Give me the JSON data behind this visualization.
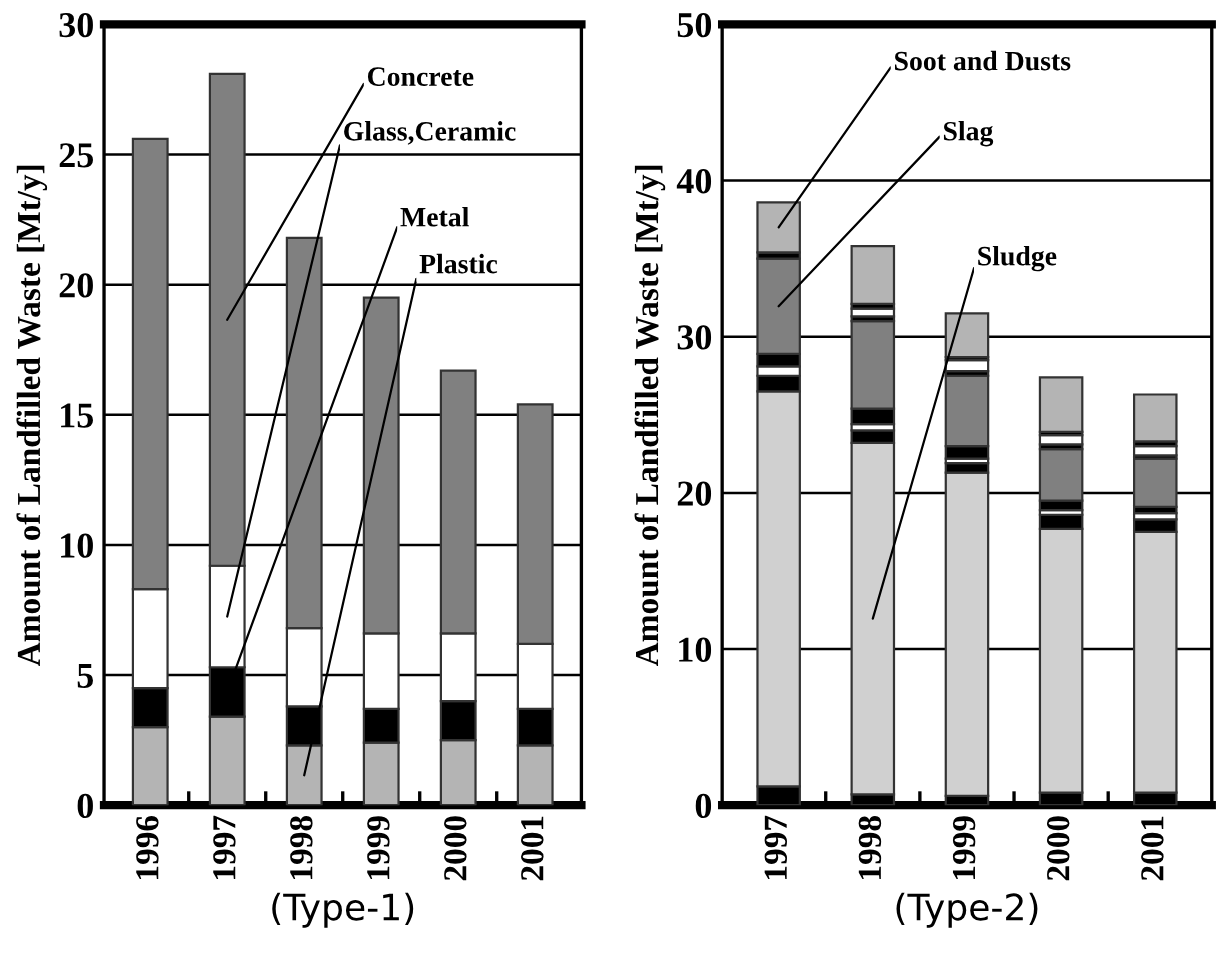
{
  "chart_data": [
    {
      "type": "bar",
      "stacked": true,
      "xlabel": "(Type-1)",
      "ylabel": "Amount of Landfilled Waste [Mt/y]",
      "categories": [
        "1996",
        "1997",
        "1998",
        "1999",
        "2000",
        "2001"
      ],
      "series": [
        {
          "name": "Plastic",
          "color": "#b4b4b4",
          "values": [
            3.0,
            3.4,
            2.3,
            2.4,
            2.5,
            2.3
          ]
        },
        {
          "name": "Metal",
          "color": "#000000",
          "values": [
            1.5,
            1.9,
            1.5,
            1.3,
            1.5,
            1.4
          ]
        },
        {
          "name": "Glass,Ceramic",
          "color": "#ffffff",
          "values": [
            3.8,
            3.9,
            3.0,
            2.9,
            2.6,
            2.5
          ]
        },
        {
          "name": "Concrete",
          "color": "#808080",
          "values": [
            17.3,
            18.9,
            15.0,
            12.9,
            10.1,
            9.2
          ]
        }
      ],
      "ylim": [
        0,
        30
      ],
      "yticks": [
        0,
        5,
        10,
        15,
        20,
        25,
        30
      ],
      "grid": "y",
      "legend": false
    },
    {
      "type": "bar",
      "stacked": true,
      "xlabel": "(Type-2)",
      "ylabel": "Amount of Landfilled Waste [Mt/y]",
      "categories": [
        "1997",
        "1998",
        "1999",
        "2000",
        "2001"
      ],
      "series": [
        {
          "color": "#000000",
          "values": [
            1.2,
            0.7,
            0.6,
            0.8,
            0.8
          ]
        },
        {
          "name": "Sludge",
          "color": "#d0d0d0",
          "values": [
            25.3,
            22.5,
            20.7,
            16.9,
            16.7
          ]
        },
        {
          "color": "#000000",
          "values": [
            1.0,
            0.8,
            0.6,
            0.9,
            0.8
          ]
        },
        {
          "color": "#ffffff",
          "values": [
            0.6,
            0.4,
            0.3,
            0.3,
            0.4
          ]
        },
        {
          "color": "#000000",
          "values": [
            0.8,
            1.0,
            0.8,
            0.6,
            0.4
          ]
        },
        {
          "name": "Slag",
          "color": "#808080",
          "values": [
            6.1,
            5.6,
            4.5,
            3.3,
            3.1
          ]
        },
        {
          "color": "#000000",
          "values": [
            0.4,
            0.3,
            0.3,
            0.3,
            0.2
          ]
        },
        {
          "color": "#ffffff",
          "values": [
            0,
            0.5,
            0.7,
            0.6,
            0.6
          ]
        },
        {
          "color": "#000000",
          "values": [
            0,
            0.3,
            0.2,
            0.2,
            0.3
          ]
        },
        {
          "name": "Soot and Dusts",
          "color": "#b4b4b4",
          "values": [
            3.2,
            3.7,
            2.8,
            3.5,
            3.0
          ]
        }
      ],
      "ylim": [
        0,
        50
      ],
      "yticks": [
        0,
        10,
        20,
        30,
        40,
        50
      ],
      "grid": "y",
      "legend": false
    }
  ]
}
